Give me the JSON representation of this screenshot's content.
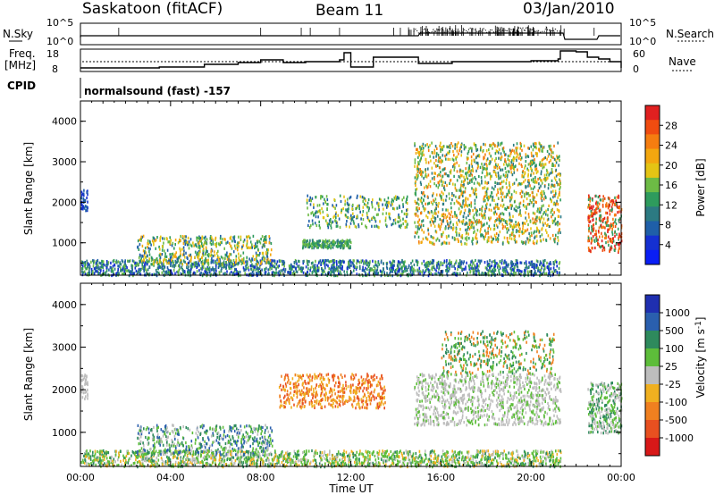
{
  "header": {
    "station": "Saskatoon (fitACF)",
    "beam": "Beam 11",
    "date": "03/Jan/2010"
  },
  "top_panels": {
    "nsky_label": "N.Sky",
    "nsky_ticks": [
      "10^5",
      "10^0"
    ],
    "nsearch_label": "N.Search",
    "nsearch_ticks": [
      "10^5",
      "10^0"
    ],
    "freq_label_1": "Freq.",
    "freq_label_2": "[MHz]",
    "freq_ticks": [
      "18",
      "8"
    ],
    "nave_label": "Nave",
    "nave_ticks": [
      "60",
      "0"
    ],
    "cpid_label": "CPID",
    "cpid_text": "normalsound (fast) -157"
  },
  "chart_data": [
    {
      "type": "heatmap",
      "name": "power-panel",
      "ylabel": "Slant Range [km]",
      "xlabel": "",
      "y_ticks": [
        1000,
        2000,
        3000,
        4000
      ],
      "ylim": [
        200,
        4500
      ],
      "x_ticks": [
        "00:00",
        "04:00",
        "08:00",
        "12:00",
        "16:00",
        "20:00",
        "00:00"
      ],
      "xlim_hours": [
        0,
        24
      ],
      "colorbar": {
        "label": "Power [dB]",
        "ticks": [
          "28",
          "24",
          "20",
          "16",
          "12",
          "8",
          "4"
        ],
        "colors": [
          "#e02020",
          "#f04c10",
          "#f57d10",
          "#f3a70f",
          "#e4c414",
          "#6dbb45",
          "#2e9b5d",
          "#2c7a82",
          "#1f5fa8",
          "#1530d2",
          "#0a1ef5"
        ]
      }
    },
    {
      "type": "heatmap",
      "name": "velocity-panel",
      "ylabel": "Slant Range [km]",
      "xlabel": "Time UT",
      "y_ticks": [
        1000,
        2000,
        3000,
        4000
      ],
      "ylim": [
        200,
        4500
      ],
      "x_ticks": [
        "00:00",
        "04:00",
        "08:00",
        "12:00",
        "16:00",
        "20:00",
        "00:00"
      ],
      "xlim_hours": [
        0,
        24
      ],
      "colorbar": {
        "label": "Velocity [m s",
        "label_sup": "-1",
        "label_end": "]",
        "ticks": [
          "1000",
          "500",
          "100",
          "25",
          "-25",
          "-100",
          "-500",
          "-1000"
        ],
        "colors": [
          "#1f2fb0",
          "#2a5fae",
          "#2e8a5d",
          "#5dbd3a",
          "#bdbdbd",
          "#f0b020",
          "#f08020",
          "#e85020",
          "#d81818"
        ]
      }
    }
  ]
}
